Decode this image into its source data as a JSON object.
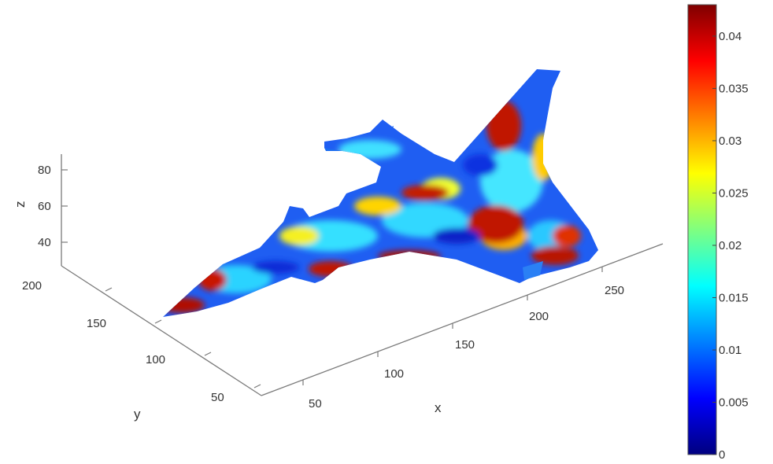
{
  "chart_data": {
    "type": "surface",
    "title": "",
    "xlabel": "x",
    "ylabel": "y",
    "zlabel": "z",
    "x_ticks": [
      "50",
      "100",
      "150",
      "200",
      "250"
    ],
    "y_ticks": [
      "50",
      "100",
      "150",
      "200"
    ],
    "z_ticks": [
      "40",
      "60",
      "80"
    ],
    "xlim": [
      30,
      290
    ],
    "ylim": [
      30,
      210
    ],
    "zlim": [
      30,
      90
    ],
    "grid": false,
    "colorbar": {
      "colormap": "jet",
      "range": [
        0,
        0.043
      ],
      "tick_labels": [
        "0",
        "0.005",
        "0.01",
        "0.015",
        "0.02",
        "0.025",
        "0.03",
        "0.035",
        "0.04"
      ],
      "tick_values": [
        0,
        0.005,
        0.01,
        0.015,
        0.02,
        0.025,
        0.03,
        0.035,
        0.04
      ]
    },
    "surface_description_colors": {
      "low": "#0a2cd8",
      "mid": "#00e0ff",
      "high": "#c81200"
    }
  }
}
